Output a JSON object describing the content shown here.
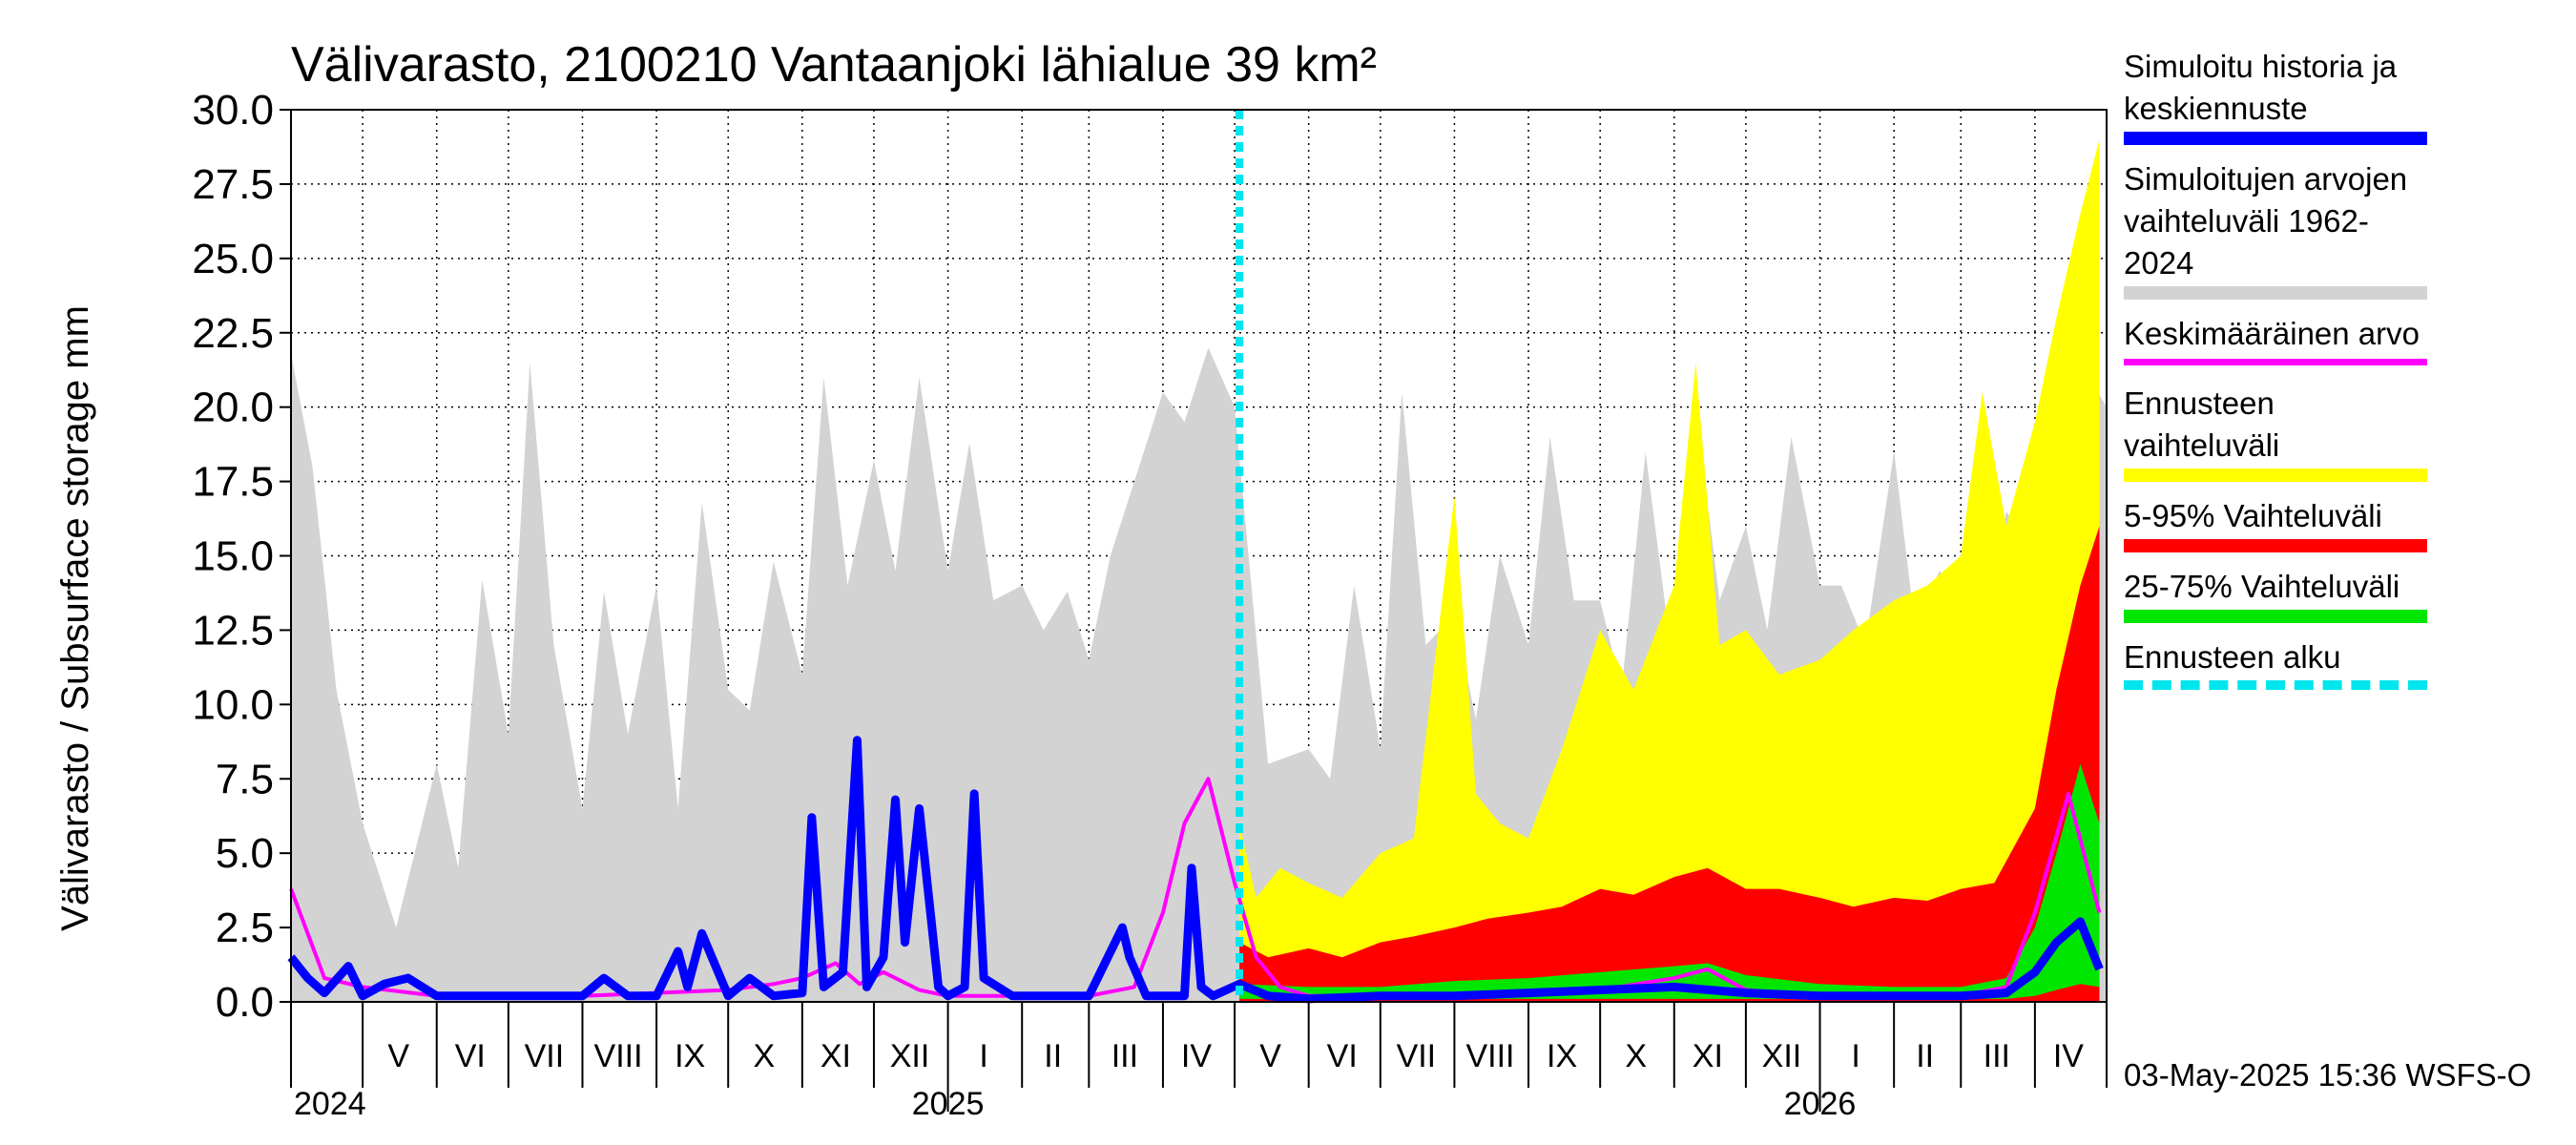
{
  "chart_data": {
    "type": "area",
    "title": "Välivarasto, 2100210 Vantaanjoki lähialue 39 km²",
    "ylabel": "Välivarasto / Subsurface storage  mm",
    "xlabel": "",
    "ylim": [
      0,
      30
    ],
    "y_ticks": [
      "0.0",
      "2.5",
      "5.0",
      "7.5",
      "10.0",
      "12.5",
      "15.0",
      "17.5",
      "20.0",
      "22.5",
      "25.0",
      "27.5",
      "30.0"
    ],
    "x_range": [
      "2024-04-01",
      "2026-05-01"
    ],
    "grid": true,
    "month_labels": [
      {
        "label": "V",
        "date": "2024-05-16"
      },
      {
        "label": "VI",
        "date": "2024-06-15"
      },
      {
        "label": "VII",
        "date": "2024-07-16"
      },
      {
        "label": "VIII",
        "date": "2024-08-16"
      },
      {
        "label": "IX",
        "date": "2024-09-15"
      },
      {
        "label": "X",
        "date": "2024-10-16"
      },
      {
        "label": "XI",
        "date": "2024-11-15"
      },
      {
        "label": "XII",
        "date": "2024-12-16"
      },
      {
        "label": "I",
        "date": "2025-01-16"
      },
      {
        "label": "II",
        "date": "2025-02-14"
      },
      {
        "label": "III",
        "date": "2025-03-16"
      },
      {
        "label": "IV",
        "date": "2025-04-15"
      },
      {
        "label": "V",
        "date": "2025-05-16"
      },
      {
        "label": "VI",
        "date": "2025-06-15"
      },
      {
        "label": "VII",
        "date": "2025-07-16"
      },
      {
        "label": "VIII",
        "date": "2025-08-16"
      },
      {
        "label": "IX",
        "date": "2025-09-15"
      },
      {
        "label": "X",
        "date": "2025-10-16"
      },
      {
        "label": "XI",
        "date": "2025-11-15"
      },
      {
        "label": "XII",
        "date": "2025-12-16"
      },
      {
        "label": "I",
        "date": "2026-01-16"
      },
      {
        "label": "II",
        "date": "2026-02-14"
      },
      {
        "label": "III",
        "date": "2026-03-16"
      },
      {
        "label": "IV",
        "date": "2026-04-15"
      }
    ],
    "year_labels": [
      {
        "label": "2024",
        "date": "2024-05-01"
      },
      {
        "label": "2025",
        "date": "2025-01-01"
      },
      {
        "label": "2026",
        "date": "2026-01-01"
      }
    ],
    "forecast_start": "2025-05-03",
    "series": [
      {
        "name": "Simuloitujen arvojen vaihteluväli 1962-2024",
        "kind": "band",
        "x": [
          "2024-04-01",
          "2024-04-10",
          "2024-04-20",
          "2024-05-01",
          "2024-05-15",
          "2024-06-01",
          "2024-06-10",
          "2024-06-20",
          "2024-07-01",
          "2024-07-10",
          "2024-07-20",
          "2024-08-01",
          "2024-08-10",
          "2024-08-20",
          "2024-09-01",
          "2024-09-10",
          "2024-09-20",
          "2024-10-01",
          "2024-10-10",
          "2024-10-20",
          "2024-11-01",
          "2024-11-10",
          "2024-11-20",
          "2024-12-01",
          "2024-12-10",
          "2024-12-20",
          "2025-01-01",
          "2025-01-10",
          "2025-01-20",
          "2025-02-01",
          "2025-02-10",
          "2025-02-20",
          "2025-03-01",
          "2025-03-10",
          "2025-03-20",
          "2025-04-01",
          "2025-04-10",
          "2025-04-20",
          "2025-05-01",
          "2025-05-15",
          "2025-06-01",
          "2025-06-10",
          "2025-06-20",
          "2025-07-01",
          "2025-07-10",
          "2025-07-20",
          "2025-08-01",
          "2025-08-10",
          "2025-08-20",
          "2025-09-01",
          "2025-09-10",
          "2025-09-20",
          "2025-10-01",
          "2025-10-10",
          "2025-10-20",
          "2025-11-01",
          "2025-11-10",
          "2025-11-20",
          "2025-12-01",
          "2025-12-10",
          "2025-12-20",
          "2026-01-01",
          "2026-01-10",
          "2026-01-20",
          "2026-02-01",
          "2026-02-10",
          "2026-02-20",
          "2026-03-01",
          "2026-03-10",
          "2026-03-20",
          "2026-04-01",
          "2026-04-10",
          "2026-04-20",
          "2026-05-01"
        ],
        "upper": [
          21.8,
          18.0,
          10.5,
          6.0,
          2.5,
          8.0,
          4.5,
          14.2,
          9.0,
          21.5,
          12.0,
          6.5,
          13.8,
          9.0,
          14.0,
          6.5,
          16.8,
          10.5,
          9.8,
          14.8,
          11.0,
          21.0,
          14.0,
          18.2,
          14.5,
          21.0,
          14.5,
          18.8,
          13.5,
          14.0,
          12.5,
          13.8,
          11.5,
          15.0,
          17.5,
          20.5,
          19.5,
          22.0,
          20.0,
          8.0,
          8.5,
          7.5,
          14.0,
          8.5,
          20.5,
          12.0,
          13.0,
          9.5,
          15.0,
          12.0,
          19.0,
          13.5,
          13.5,
          10.5,
          18.5,
          11.0,
          20.0,
          13.5,
          16.0,
          12.5,
          19.0,
          14.0,
          14.0,
          12.0,
          18.5,
          12.5,
          14.5,
          13.5,
          11.5,
          16.5,
          15.0,
          19.5,
          21.5,
          20.0
        ],
        "lower": [
          0,
          0,
          0,
          0,
          0,
          0,
          0,
          0,
          0,
          0,
          0,
          0,
          0,
          0,
          0,
          0,
          0,
          0,
          0,
          0,
          0,
          0,
          0,
          0,
          0,
          0,
          0,
          0,
          0,
          0,
          0,
          0,
          0,
          0,
          0,
          0,
          0,
          0,
          0,
          0,
          0,
          0,
          0,
          0,
          0,
          0,
          0,
          0,
          0,
          0,
          0,
          0,
          0,
          0,
          0,
          0,
          0,
          0,
          0,
          0,
          0,
          0,
          0,
          0,
          0,
          0,
          0,
          0,
          0,
          0,
          0,
          0,
          0,
          0
        ],
        "color": "#d3d3d3"
      },
      {
        "name": "Ennusteen vaihteluväli",
        "kind": "band",
        "x": [
          "2025-05-03",
          "2025-05-10",
          "2025-05-20",
          "2025-06-01",
          "2025-06-15",
          "2025-07-01",
          "2025-07-15",
          "2025-08-01",
          "2025-08-10",
          "2025-08-20",
          "2025-09-01",
          "2025-09-15",
          "2025-10-01",
          "2025-10-15",
          "2025-11-01",
          "2025-11-10",
          "2025-11-20",
          "2025-12-01",
          "2025-12-15",
          "2026-01-01",
          "2026-01-15",
          "2026-02-01",
          "2026-02-15",
          "2026-03-01",
          "2026-03-10",
          "2026-03-20",
          "2026-04-01",
          "2026-04-10",
          "2026-04-20",
          "2026-04-28"
        ],
        "upper": [
          6.0,
          3.5,
          4.5,
          4.0,
          3.5,
          5.0,
          5.5,
          17.0,
          7.0,
          6.0,
          5.5,
          8.5,
          12.5,
          10.5,
          14.0,
          21.5,
          12.0,
          12.5,
          11.0,
          11.5,
          12.5,
          13.5,
          14.0,
          15.0,
          20.5,
          16.0,
          19.5,
          23.0,
          26.5,
          29.0
        ],
        "lower": [
          0,
          0,
          0,
          0,
          0,
          0,
          0,
          0,
          0,
          0,
          0,
          0,
          0,
          0,
          0,
          0,
          0,
          0,
          0,
          0,
          0,
          0,
          0,
          0,
          0,
          0,
          0,
          0,
          0,
          0
        ],
        "color": "#ffff00"
      },
      {
        "name": "5-95% Vaihteluväli",
        "kind": "band",
        "x": [
          "2025-05-03",
          "2025-05-15",
          "2025-06-01",
          "2025-06-15",
          "2025-07-01",
          "2025-07-15",
          "2025-08-01",
          "2025-08-15",
          "2025-09-01",
          "2025-09-15",
          "2025-10-01",
          "2025-10-15",
          "2025-11-01",
          "2025-11-15",
          "2025-12-01",
          "2025-12-15",
          "2026-01-01",
          "2026-01-15",
          "2026-02-01",
          "2026-02-15",
          "2026-03-01",
          "2026-03-15",
          "2026-04-01",
          "2026-04-10",
          "2026-04-20",
          "2026-04-28"
        ],
        "upper": [
          2.0,
          1.5,
          1.8,
          1.5,
          2.0,
          2.2,
          2.5,
          2.8,
          3.0,
          3.2,
          3.8,
          3.6,
          4.2,
          4.5,
          3.8,
          3.8,
          3.5,
          3.2,
          3.5,
          3.4,
          3.8,
          4.0,
          6.5,
          10.5,
          14.0,
          16.0
        ],
        "lower": [
          0,
          0,
          0,
          0,
          0,
          0,
          0,
          0,
          0,
          0,
          0,
          0,
          0,
          0,
          0,
          0,
          0,
          0,
          0,
          0,
          0,
          0,
          0,
          0,
          0,
          0
        ],
        "color": "#ff0000"
      },
      {
        "name": "25-75% Vaihteluväli",
        "kind": "band",
        "x": [
          "2025-05-03",
          "2025-06-01",
          "2025-07-01",
          "2025-08-01",
          "2025-09-01",
          "2025-10-01",
          "2025-11-01",
          "2025-11-15",
          "2025-12-01",
          "2026-01-01",
          "2026-02-01",
          "2026-03-01",
          "2026-03-20",
          "2026-04-01",
          "2026-04-10",
          "2026-04-20",
          "2026-04-28"
        ],
        "upper": [
          0.6,
          0.5,
          0.5,
          0.7,
          0.8,
          1.0,
          1.2,
          1.3,
          0.9,
          0.6,
          0.5,
          0.5,
          0.8,
          2.5,
          5.0,
          8.0,
          6.0
        ],
        "lower": [
          0.1,
          0.1,
          0.1,
          0.1,
          0.1,
          0.1,
          0.1,
          0.1,
          0.1,
          0.1,
          0.1,
          0.1,
          0.1,
          0.2,
          0.4,
          0.6,
          0.5
        ],
        "color": "#00e600"
      },
      {
        "name": "Keskimääräinen arvo",
        "kind": "line",
        "x": [
          "2024-04-01",
          "2024-04-15",
          "2024-05-01",
          "2024-06-01",
          "2024-07-01",
          "2024-08-01",
          "2024-09-01",
          "2024-10-01",
          "2024-10-20",
          "2024-11-01",
          "2024-11-15",
          "2024-11-25",
          "2024-12-05",
          "2024-12-20",
          "2025-01-01",
          "2025-02-01",
          "2025-03-01",
          "2025-03-20",
          "2025-04-01",
          "2025-04-10",
          "2025-04-20",
          "2025-05-01",
          "2025-05-10",
          "2025-05-20",
          "2025-06-01",
          "2025-07-01",
          "2025-08-01",
          "2025-09-01",
          "2025-10-01",
          "2025-11-01",
          "2025-11-15",
          "2025-12-01",
          "2026-01-01",
          "2026-02-01",
          "2026-03-01",
          "2026-03-20",
          "2026-04-01",
          "2026-04-15",
          "2026-04-28"
        ],
        "y": [
          3.8,
          0.8,
          0.5,
          0.2,
          0.2,
          0.2,
          0.3,
          0.4,
          0.6,
          0.8,
          1.3,
          0.6,
          1.0,
          0.4,
          0.2,
          0.2,
          0.2,
          0.5,
          3.0,
          6.0,
          7.5,
          4.0,
          1.5,
          0.5,
          0.2,
          0.2,
          0.2,
          0.3,
          0.4,
          0.8,
          1.1,
          0.4,
          0.2,
          0.2,
          0.2,
          0.5,
          3.0,
          7.0,
          3.0
        ],
        "color": "#ff00ff"
      },
      {
        "name": "Simuloitu historia ja keskiennuste",
        "kind": "line",
        "x": [
          "2024-04-01",
          "2024-04-08",
          "2024-04-15",
          "2024-04-25",
          "2024-05-01",
          "2024-05-10",
          "2024-05-20",
          "2024-06-01",
          "2024-06-15",
          "2024-07-01",
          "2024-07-15",
          "2024-08-01",
          "2024-08-10",
          "2024-08-20",
          "2024-09-01",
          "2024-09-10",
          "2024-09-14",
          "2024-09-20",
          "2024-10-01",
          "2024-10-10",
          "2024-10-20",
          "2024-11-01",
          "2024-11-05",
          "2024-11-10",
          "2024-11-18",
          "2024-11-24",
          "2024-11-28",
          "2024-12-05",
          "2024-12-10",
          "2024-12-14",
          "2024-12-20",
          "2024-12-28",
          "2025-01-01",
          "2025-01-08",
          "2025-01-12",
          "2025-01-16",
          "2025-01-28",
          "2025-02-01",
          "2025-02-15",
          "2025-03-01",
          "2025-03-15",
          "2025-03-18",
          "2025-03-25",
          "2025-04-01",
          "2025-04-10",
          "2025-04-13",
          "2025-04-17",
          "2025-04-22",
          "2025-05-03",
          "2025-05-15",
          "2025-06-01",
          "2025-07-01",
          "2025-08-01",
          "2025-09-01",
          "2025-10-01",
          "2025-11-01",
          "2025-12-01",
          "2026-01-01",
          "2026-02-01",
          "2026-03-01",
          "2026-03-20",
          "2026-04-01",
          "2026-04-10",
          "2026-04-20",
          "2026-04-28"
        ],
        "y": [
          1.5,
          0.8,
          0.3,
          1.2,
          0.2,
          0.6,
          0.8,
          0.2,
          0.2,
          0.2,
          0.2,
          0.2,
          0.8,
          0.2,
          0.2,
          1.7,
          0.5,
          2.3,
          0.2,
          0.8,
          0.2,
          0.3,
          6.2,
          0.5,
          1.0,
          8.8,
          0.5,
          1.5,
          6.8,
          2.0,
          6.5,
          0.5,
          0.2,
          0.5,
          7.0,
          0.8,
          0.2,
          0.2,
          0.2,
          0.2,
          2.5,
          1.5,
          0.2,
          0.2,
          0.2,
          4.5,
          0.5,
          0.2,
          0.6,
          0.2,
          0.1,
          0.2,
          0.2,
          0.3,
          0.4,
          0.5,
          0.3,
          0.2,
          0.2,
          0.2,
          0.3,
          1.0,
          2.0,
          2.7,
          1.1
        ],
        "color": "#0000ff"
      }
    ]
  },
  "legend": [
    {
      "label": "Simuloitu historia ja\nkeskiennuste",
      "color": "#0000ff",
      "style": "thick"
    },
    {
      "label": "Simuloitujen arvojen\nvaihteluväli 1962-2024",
      "color": "#d3d3d3",
      "style": "thick"
    },
    {
      "label": "Keskimääräinen arvo",
      "color": "#ff00ff",
      "style": "thin"
    },
    {
      "label": "Ennusteen vaihteluväli",
      "color": "#ffff00",
      "style": "thick"
    },
    {
      "label": "5-95% Vaihteluväli",
      "color": "#ff0000",
      "style": "thick"
    },
    {
      "label": "25-75% Vaihteluväli",
      "color": "#00e600",
      "style": "thick"
    },
    {
      "label": "Ennusteen alku",
      "color": "#00e5ee",
      "style": "dashed"
    }
  ],
  "footer": "03-May-2025 15:36 WSFS-O"
}
